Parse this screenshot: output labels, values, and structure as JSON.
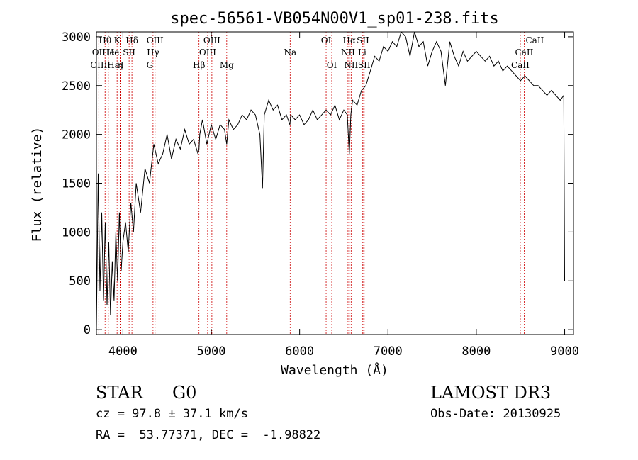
{
  "chart_data": {
    "type": "line",
    "title": "spec-56561-VB054N00V1_sp01-238.fits",
    "xlabel": "Wavelength (Å)",
    "ylabel": "Flux (relative)",
    "xlim": [
      3700,
      9100
    ],
    "ylim": [
      -50,
      3050
    ],
    "xticks": [
      4000,
      5000,
      6000,
      7000,
      8000,
      9000
    ],
    "yticks": [
      0,
      500,
      1000,
      1500,
      2000,
      2500,
      3000
    ],
    "series": [
      {
        "name": "flux",
        "x": [
          3700,
          3720,
          3740,
          3760,
          3780,
          3800,
          3820,
          3840,
          3860,
          3880,
          3900,
          3920,
          3940,
          3960,
          3980,
          4000,
          4030,
          4060,
          4090,
          4120,
          4150,
          4200,
          4250,
          4300,
          4350,
          4400,
          4450,
          4500,
          4550,
          4600,
          4650,
          4700,
          4750,
          4800,
          4850,
          4861,
          4870,
          4900,
          4950,
          5000,
          5050,
          5100,
          5150,
          5175,
          5200,
          5250,
          5300,
          5350,
          5400,
          5450,
          5500,
          5550,
          5580,
          5600,
          5650,
          5700,
          5750,
          5800,
          5850,
          5890,
          5900,
          5950,
          6000,
          6050,
          6100,
          6150,
          6200,
          6250,
          6300,
          6350,
          6400,
          6450,
          6500,
          6540,
          6563,
          6580,
          6600,
          6650,
          6700,
          6750,
          6800,
          6850,
          6900,
          6950,
          7000,
          7050,
          7100,
          7150,
          7200,
          7250,
          7300,
          7350,
          7400,
          7450,
          7500,
          7550,
          7600,
          7650,
          7700,
          7750,
          7800,
          7850,
          7900,
          7950,
          8000,
          8050,
          8100,
          8150,
          8200,
          8250,
          8300,
          8350,
          8400,
          8450,
          8500,
          8550,
          8600,
          8650,
          8700,
          8750,
          8800,
          8850,
          8900,
          8950,
          8990,
          9000
        ],
        "values": [
          0,
          1600,
          400,
          1200,
          300,
          1100,
          250,
          900,
          150,
          700,
          300,
          1000,
          500,
          1200,
          600,
          900,
          1100,
          800,
          1300,
          1000,
          1500,
          1200,
          1650,
          1500,
          1900,
          1700,
          1800,
          2000,
          1750,
          1950,
          1850,
          2050,
          1900,
          1950,
          1800,
          1850,
          2000,
          2150,
          1900,
          2100,
          1950,
          2100,
          2050,
          1900,
          2150,
          2050,
          2100,
          2200,
          2150,
          2250,
          2200,
          2000,
          1450,
          2200,
          2350,
          2250,
          2300,
          2150,
          2200,
          2100,
          2200,
          2150,
          2200,
          2100,
          2150,
          2250,
          2150,
          2200,
          2250,
          2200,
          2300,
          2150,
          2250,
          2200,
          1800,
          2200,
          2350,
          2300,
          2450,
          2500,
          2650,
          2800,
          2750,
          2900,
          2850,
          2950,
          2900,
          3050,
          3000,
          2800,
          3050,
          2900,
          2950,
          2700,
          2850,
          2950,
          2850,
          2500,
          2950,
          2800,
          2700,
          2850,
          2750,
          2800,
          2850,
          2800,
          2750,
          2800,
          2700,
          2750,
          2650,
          2700,
          2650,
          2600,
          2550,
          2600,
          2550,
          2500,
          2500,
          2450,
          2400,
          2450,
          2400,
          2350,
          2400,
          500
        ]
      }
    ],
    "lines": [
      {
        "name": "OII",
        "w": 3727,
        "row": 1
      },
      {
        "name": "OIII",
        "w": 3727,
        "row": 2
      },
      {
        "name": "Hθ",
        "w": 3798,
        "row": 0
      },
      {
        "name": "He",
        "w": 3835,
        "row": 1
      },
      {
        "name": "Hε",
        "w": 3889,
        "row": 2
      },
      {
        "name": "K",
        "w": 3934,
        "row": 0
      },
      {
        "name": "He",
        "w": 3889,
        "row": 1
      },
      {
        "name": "η",
        "w": 3970,
        "row": 2
      },
      {
        "name": "H",
        "w": 3968,
        "row": 2
      },
      {
        "name": "SII",
        "w": 4070,
        "row": 1
      },
      {
        "name": "Hδ",
        "w": 4102,
        "row": 0
      },
      {
        "name": "G",
        "w": 4305,
        "row": 2
      },
      {
        "name": "OIII",
        "w": 4364,
        "row": 0
      },
      {
        "name": "Hγ",
        "w": 4341,
        "row": 1
      },
      {
        "name": "Hβ",
        "w": 4861,
        "row": 2
      },
      {
        "name": "OIII",
        "w": 5007,
        "row": 0
      },
      {
        "name": "OIII",
        "w": 4959,
        "row": 1
      },
      {
        "name": "Mg",
        "w": 5175,
        "row": 2
      },
      {
        "name": "Na",
        "w": 5893,
        "row": 1
      },
      {
        "name": "OI",
        "w": 6300,
        "row": 0
      },
      {
        "name": "OI",
        "w": 6364,
        "row": 2
      },
      {
        "name": "Hα",
        "w": 6563,
        "row": 0
      },
      {
        "name": "NII",
        "w": 6548,
        "row": 1
      },
      {
        "name": "NII",
        "w": 6583,
        "row": 2
      },
      {
        "name": "SII",
        "w": 6717,
        "row": 0
      },
      {
        "name": "Li",
        "w": 6708,
        "row": 1
      },
      {
        "name": "SII",
        "w": 6731,
        "row": 2
      },
      {
        "name": "CaII",
        "w": 8662,
        "row": 0
      },
      {
        "name": "CaII",
        "w": 8542,
        "row": 1
      },
      {
        "name": "CaII",
        "w": 8498,
        "row": 2
      }
    ]
  },
  "info": {
    "object_class": "STAR",
    "subclass": "G0",
    "survey": "LAMOST DR3",
    "cz": "cz = 97.8 ± 37.1 km/s",
    "obs_date": "Obs-Date: 20130925",
    "coords": "RA =  53.77371, DEC =  -1.98822"
  },
  "colors": {
    "line_marker": "#cc0000",
    "spectrum": "#000000"
  }
}
